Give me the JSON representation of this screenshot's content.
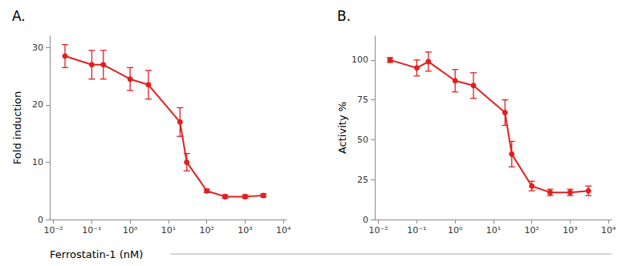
{
  "chart_data": [
    {
      "type": "line",
      "title": "A.",
      "xlabel": "Ferrostatin-1 (nM)",
      "ylabel": "Fold induction",
      "x": [
        0.02,
        0.1,
        0.2,
        1.0,
        3.0,
        20.0,
        30.0,
        100.0,
        300.0,
        1000.0,
        3000.0
      ],
      "values": [
        28.5,
        27.0,
        27.0,
        24.5,
        23.5,
        17.0,
        10.0,
        5.0,
        4.0,
        4.0,
        4.2
      ],
      "yerr": [
        2.0,
        2.5,
        2.5,
        2.0,
        2.5,
        2.5,
        1.5,
        0.3,
        0.3,
        0.3,
        0.3
      ],
      "color": "#e02020",
      "marker": "circle",
      "log": "x",
      "grid": false,
      "xlim": [
        0.008,
        12000
      ],
      "xticks": [
        {
          "value": 0.01,
          "label": "10⁻²"
        },
        {
          "value": 0.1,
          "label": "10⁻¹"
        },
        {
          "value": 1.0,
          "label": "10⁰"
        },
        {
          "value": 10.0,
          "label": "10¹"
        },
        {
          "value": 100.0,
          "label": "10²"
        },
        {
          "value": 1000.0,
          "label": "10³"
        },
        {
          "value": 10000.0,
          "label": "10⁴"
        }
      ],
      "ylim": [
        0,
        32
      ],
      "yticks": [
        0,
        10,
        20,
        30
      ]
    },
    {
      "type": "line",
      "title": "B.",
      "ylabel": "Activity %",
      "x": [
        0.02,
        0.1,
        0.2,
        1.0,
        3.0,
        20.0,
        30.0,
        100.0,
        300.0,
        1000.0,
        3000.0
      ],
      "values": [
        100.0,
        95.0,
        99.0,
        87.0,
        84.0,
        67.0,
        41.0,
        21.0,
        17.0,
        17.0,
        18.0
      ],
      "yerr": [
        1.5,
        5.0,
        6.0,
        7.0,
        8.0,
        8.0,
        8.0,
        3.0,
        2.0,
        2.0,
        3.0
      ],
      "color": "#e02020",
      "marker": "circle",
      "log": "x",
      "grid": false,
      "xlim": [
        0.008,
        12000
      ],
      "xticks": [
        {
          "value": 0.01,
          "label": "10⁻²"
        },
        {
          "value": 0.1,
          "label": "10⁻¹"
        },
        {
          "value": 1.0,
          "label": "10⁰"
        },
        {
          "value": 10.0,
          "label": "10¹"
        },
        {
          "value": 100.0,
          "label": "10²"
        },
        {
          "value": 1000.0,
          "label": "10³"
        },
        {
          "value": 10000.0,
          "label": "10⁴"
        }
      ],
      "ylim": [
        0,
        115
      ],
      "yticks": [
        0,
        25,
        50,
        75,
        100
      ]
    }
  ]
}
